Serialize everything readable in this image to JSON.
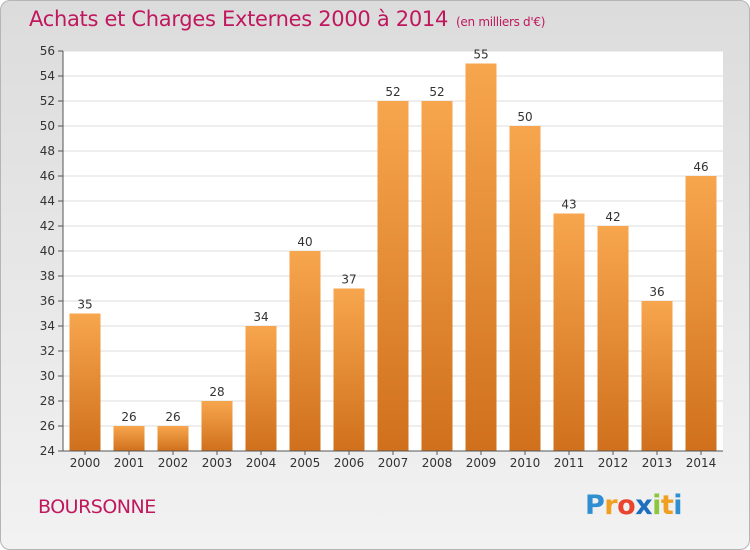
{
  "header": {
    "title": "Achats et Charges Externes 2000 à 2014",
    "subtitle": "(en milliers d'€)"
  },
  "footer": {
    "commune": "BOURSONNE",
    "logo": "Proxiti"
  },
  "colors": {
    "title": "#c0185e",
    "bar_light": "#f7a64e",
    "bar_dark": "#d0701c"
  },
  "chart_data": {
    "type": "bar",
    "categories": [
      "2000",
      "2001",
      "2002",
      "2003",
      "2004",
      "2005",
      "2006",
      "2007",
      "2008",
      "2009",
      "2010",
      "2011",
      "2012",
      "2013",
      "2014"
    ],
    "values": [
      35,
      26,
      26,
      28,
      34,
      40,
      37,
      52,
      52,
      55,
      50,
      43,
      42,
      36,
      46
    ],
    "title": "Achats et Charges Externes 2000 à 2014",
    "xlabel": "",
    "ylabel": "",
    "ylim": [
      24,
      56
    ],
    "yticks": [
      24,
      26,
      28,
      30,
      32,
      34,
      36,
      38,
      40,
      42,
      44,
      46,
      48,
      50,
      52,
      54,
      56
    ],
    "grid": true,
    "data_labels": true
  }
}
